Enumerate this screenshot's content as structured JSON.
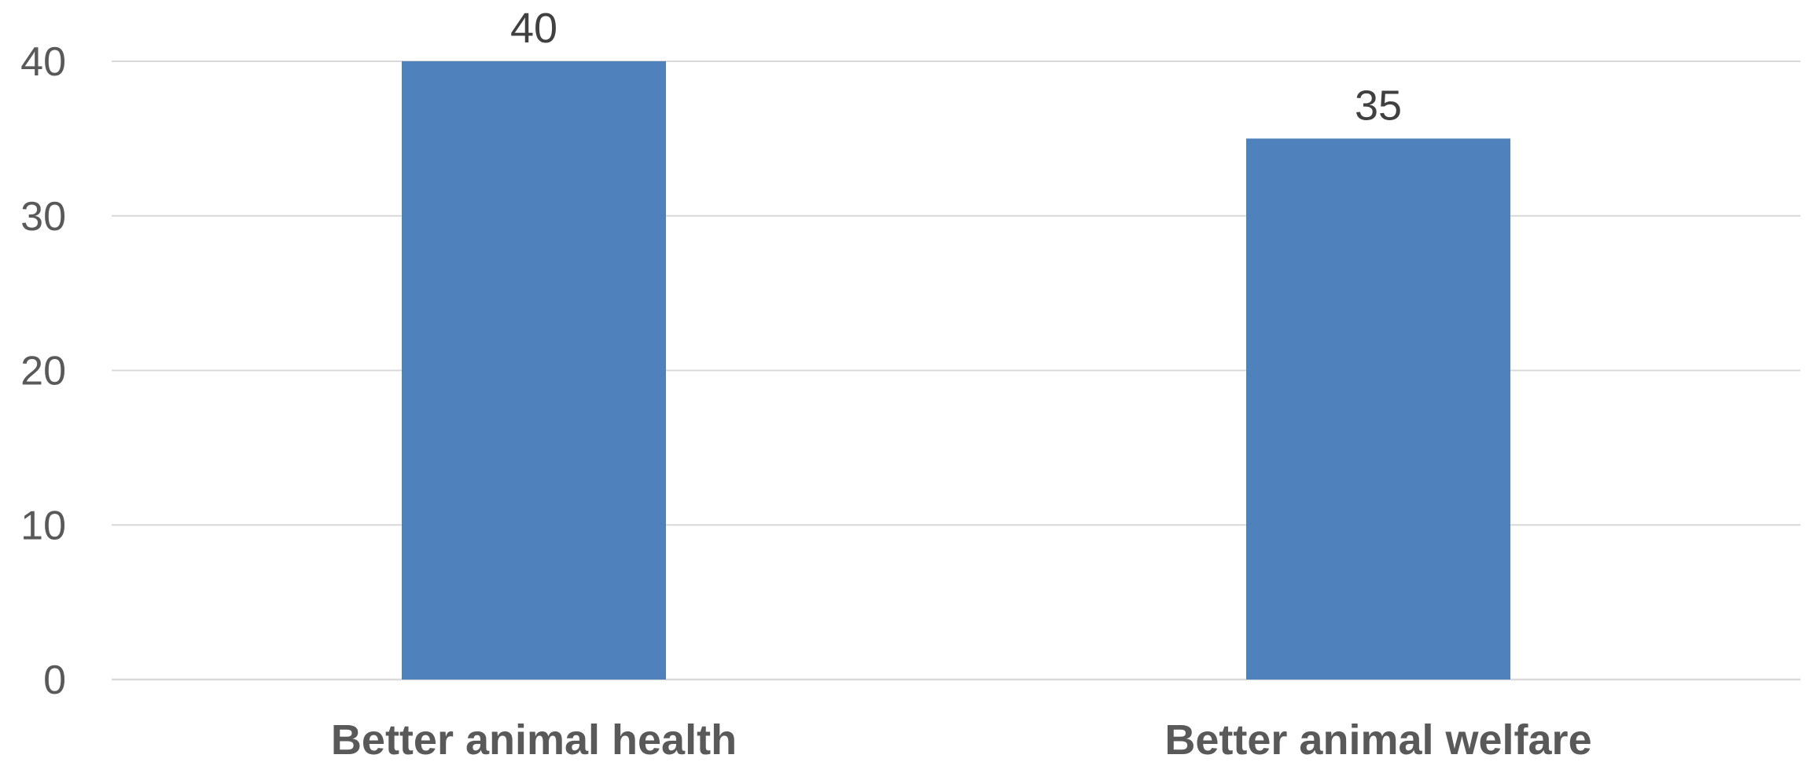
{
  "chart_data": {
    "type": "bar",
    "categories": [
      "Better animal health",
      "Better animal welfare"
    ],
    "values": [
      40,
      35
    ],
    "data_labels": [
      "40",
      "35"
    ],
    "title": "",
    "xlabel": "",
    "ylabel": "",
    "ylim": [
      0,
      40
    ],
    "yticks": [
      0,
      10,
      20,
      30,
      40
    ],
    "grid": true,
    "legend": "none",
    "bar_color": "#4f81bd"
  }
}
